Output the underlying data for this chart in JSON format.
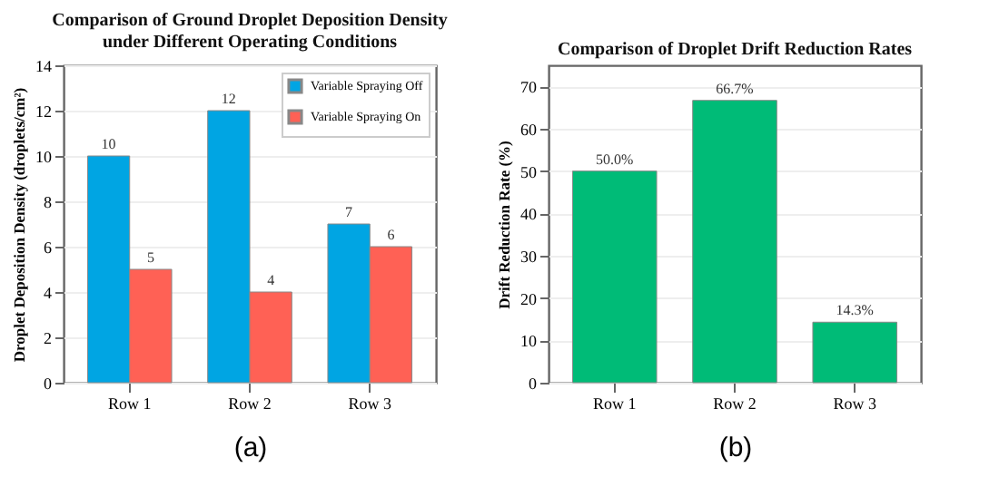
{
  "chart_data": [
    {
      "type": "bar",
      "title": "Comparison of Ground Droplet Deposition Density\nunder Different Operating Conditions",
      "ylabel": "Droplet Deposition Density (droplets/cm²)",
      "categories": [
        "Row 1",
        "Row 2",
        "Row 3"
      ],
      "series": [
        {
          "name": "Variable Spraying Off",
          "color": "#00a5e3",
          "values": [
            10,
            12,
            7
          ]
        },
        {
          "name": "Variable Spraying On",
          "color": "#ff6155",
          "values": [
            5,
            4,
            6
          ]
        }
      ],
      "ylim": [
        0,
        14
      ],
      "yticks": [
        0,
        2,
        4,
        6,
        8,
        10,
        12,
        14
      ],
      "grid": "y",
      "legend": "top right",
      "data_labels": true,
      "annotations": [
        "(a)"
      ]
    },
    {
      "type": "bar",
      "title": "Comparison of Droplet Drift Reduction Rates",
      "ylabel": "Drift Reduction Rate (%)",
      "categories": [
        "Row 1",
        "Row 2",
        "Row 3"
      ],
      "series": [
        {
          "color": "#00bb77",
          "values": [
            50.0,
            66.7,
            14.3
          ],
          "value_labels": [
            "50.0%",
            "66.7%",
            "14.3%"
          ]
        }
      ],
      "ylim": [
        0,
        75
      ],
      "yticks": [
        0,
        10,
        20,
        30,
        40,
        50,
        60,
        70
      ],
      "grid": "y",
      "legend": false,
      "annotations": [
        "(b)"
      ]
    }
  ]
}
